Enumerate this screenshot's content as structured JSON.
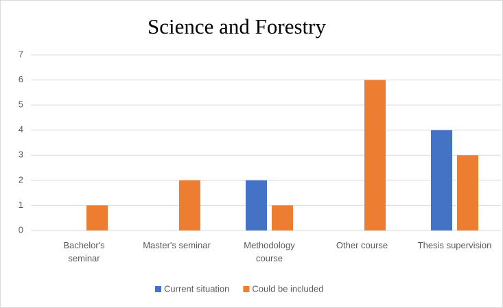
{
  "chart_data": {
    "type": "bar",
    "title": "Science and Forestry",
    "categories": [
      "Bachelor's seminar",
      "Master's seminar",
      "Methodology course",
      "Other course",
      "Thesis supervision"
    ],
    "series": [
      {
        "name": "Current situation",
        "color": "#4472c4",
        "values": [
          0,
          0,
          2,
          0,
          4
        ]
      },
      {
        "name": "Could be included",
        "color": "#ed7d31",
        "values": [
          1,
          2,
          1,
          6,
          3
        ]
      }
    ],
    "ylim": [
      0,
      7
    ],
    "yticks": [
      0,
      1,
      2,
      3,
      4,
      5,
      6,
      7
    ],
    "grid": true,
    "legend": "bottom"
  }
}
